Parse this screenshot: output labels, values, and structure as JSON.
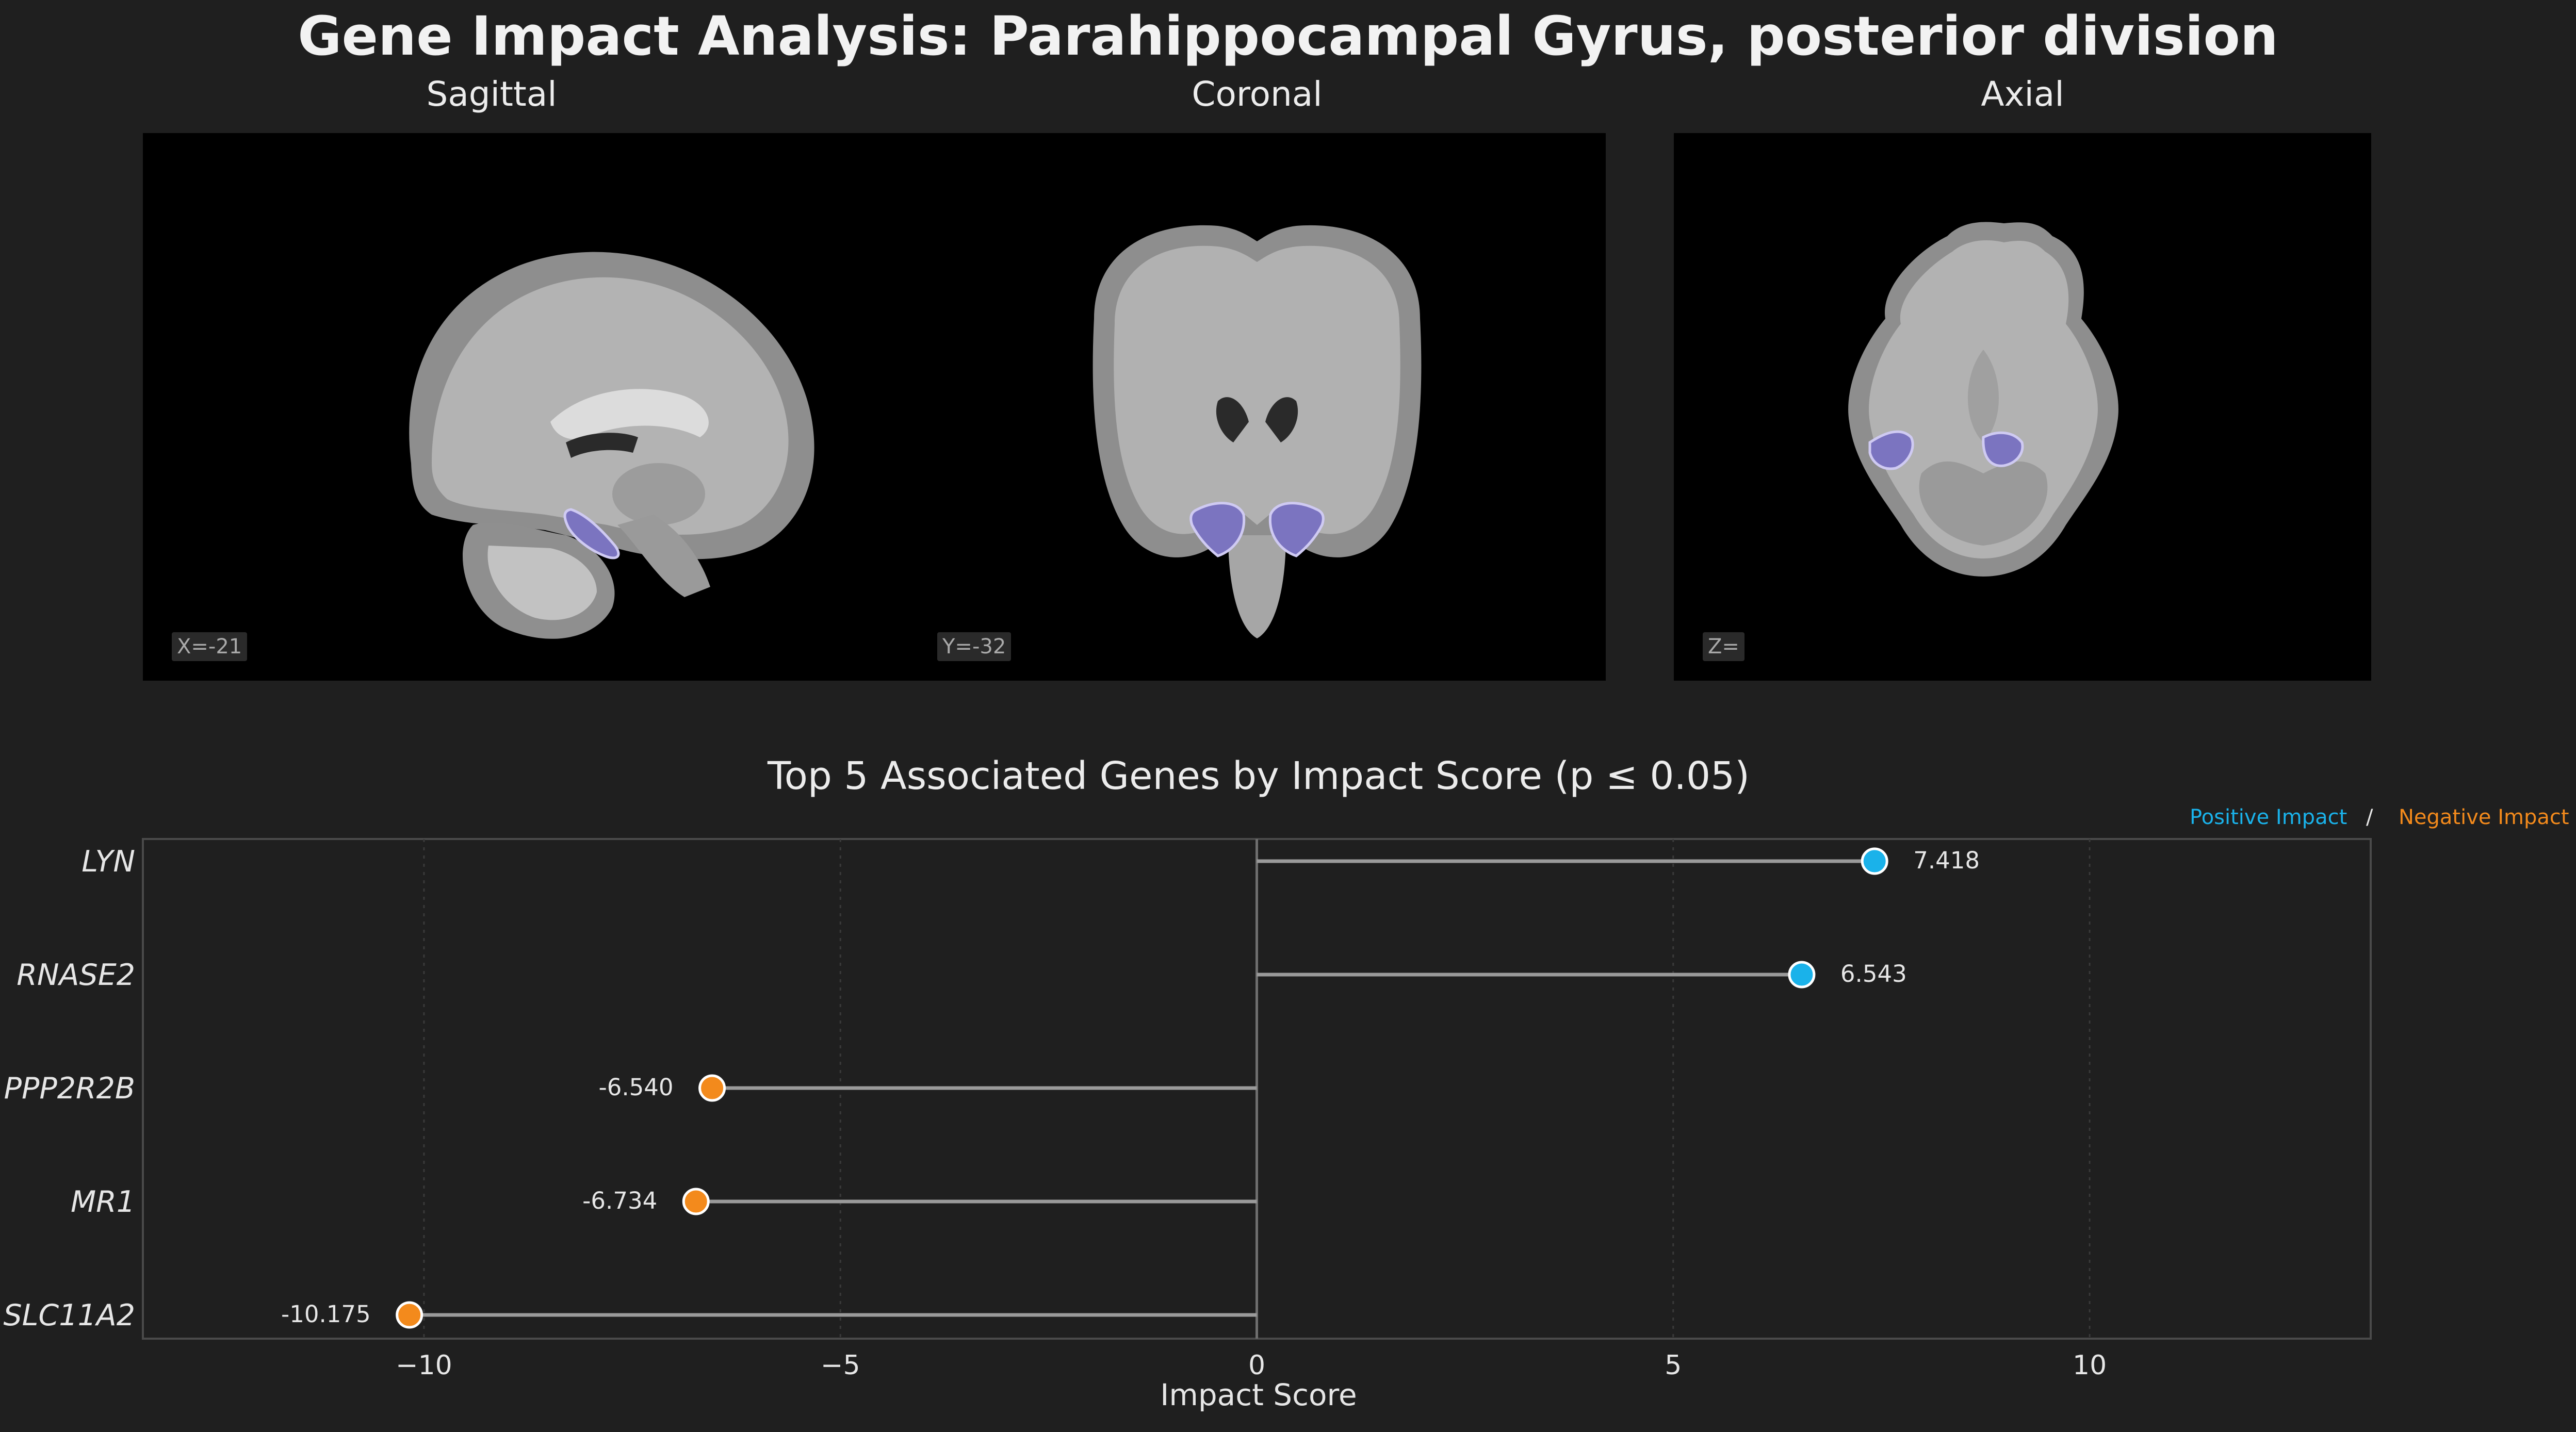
{
  "title": "Gene Impact Analysis: Parahippocampal Gyrus, posterior division",
  "views": [
    {
      "label": "Sagittal",
      "coord": "X=-21"
    },
    {
      "label": "Coronal",
      "coord": "Y=-32"
    },
    {
      "label": "Axial",
      "coord": "Z="
    }
  ],
  "legend": {
    "positive": "Positive Impact",
    "separator": "/",
    "negative": "Negative Impact",
    "positive_color": "#1ab2ea",
    "negative_color": "#f38a1c"
  },
  "chart_data": {
    "type": "lollipop",
    "title": "Top 5 Associated Genes by Impact Score (p ≤ 0.05)",
    "xlabel": "Impact Score",
    "ylabel": "",
    "xlim": [
      -13.375,
      13.375
    ],
    "xticks": [
      -10,
      -5,
      0,
      5,
      10
    ],
    "xtick_labels": [
      "−10",
      "−5",
      "0",
      "5",
      "10"
    ],
    "grid": true,
    "genes": [
      "LYN",
      "RNASE2",
      "PPP2R2B",
      "MR1",
      "SLC11A2"
    ],
    "values": [
      7.418,
      6.543,
      -6.54,
      -6.734,
      -10.175
    ],
    "value_labels": [
      "7.418",
      "6.543",
      "-6.540",
      "-6.734",
      "-10.175"
    ]
  }
}
